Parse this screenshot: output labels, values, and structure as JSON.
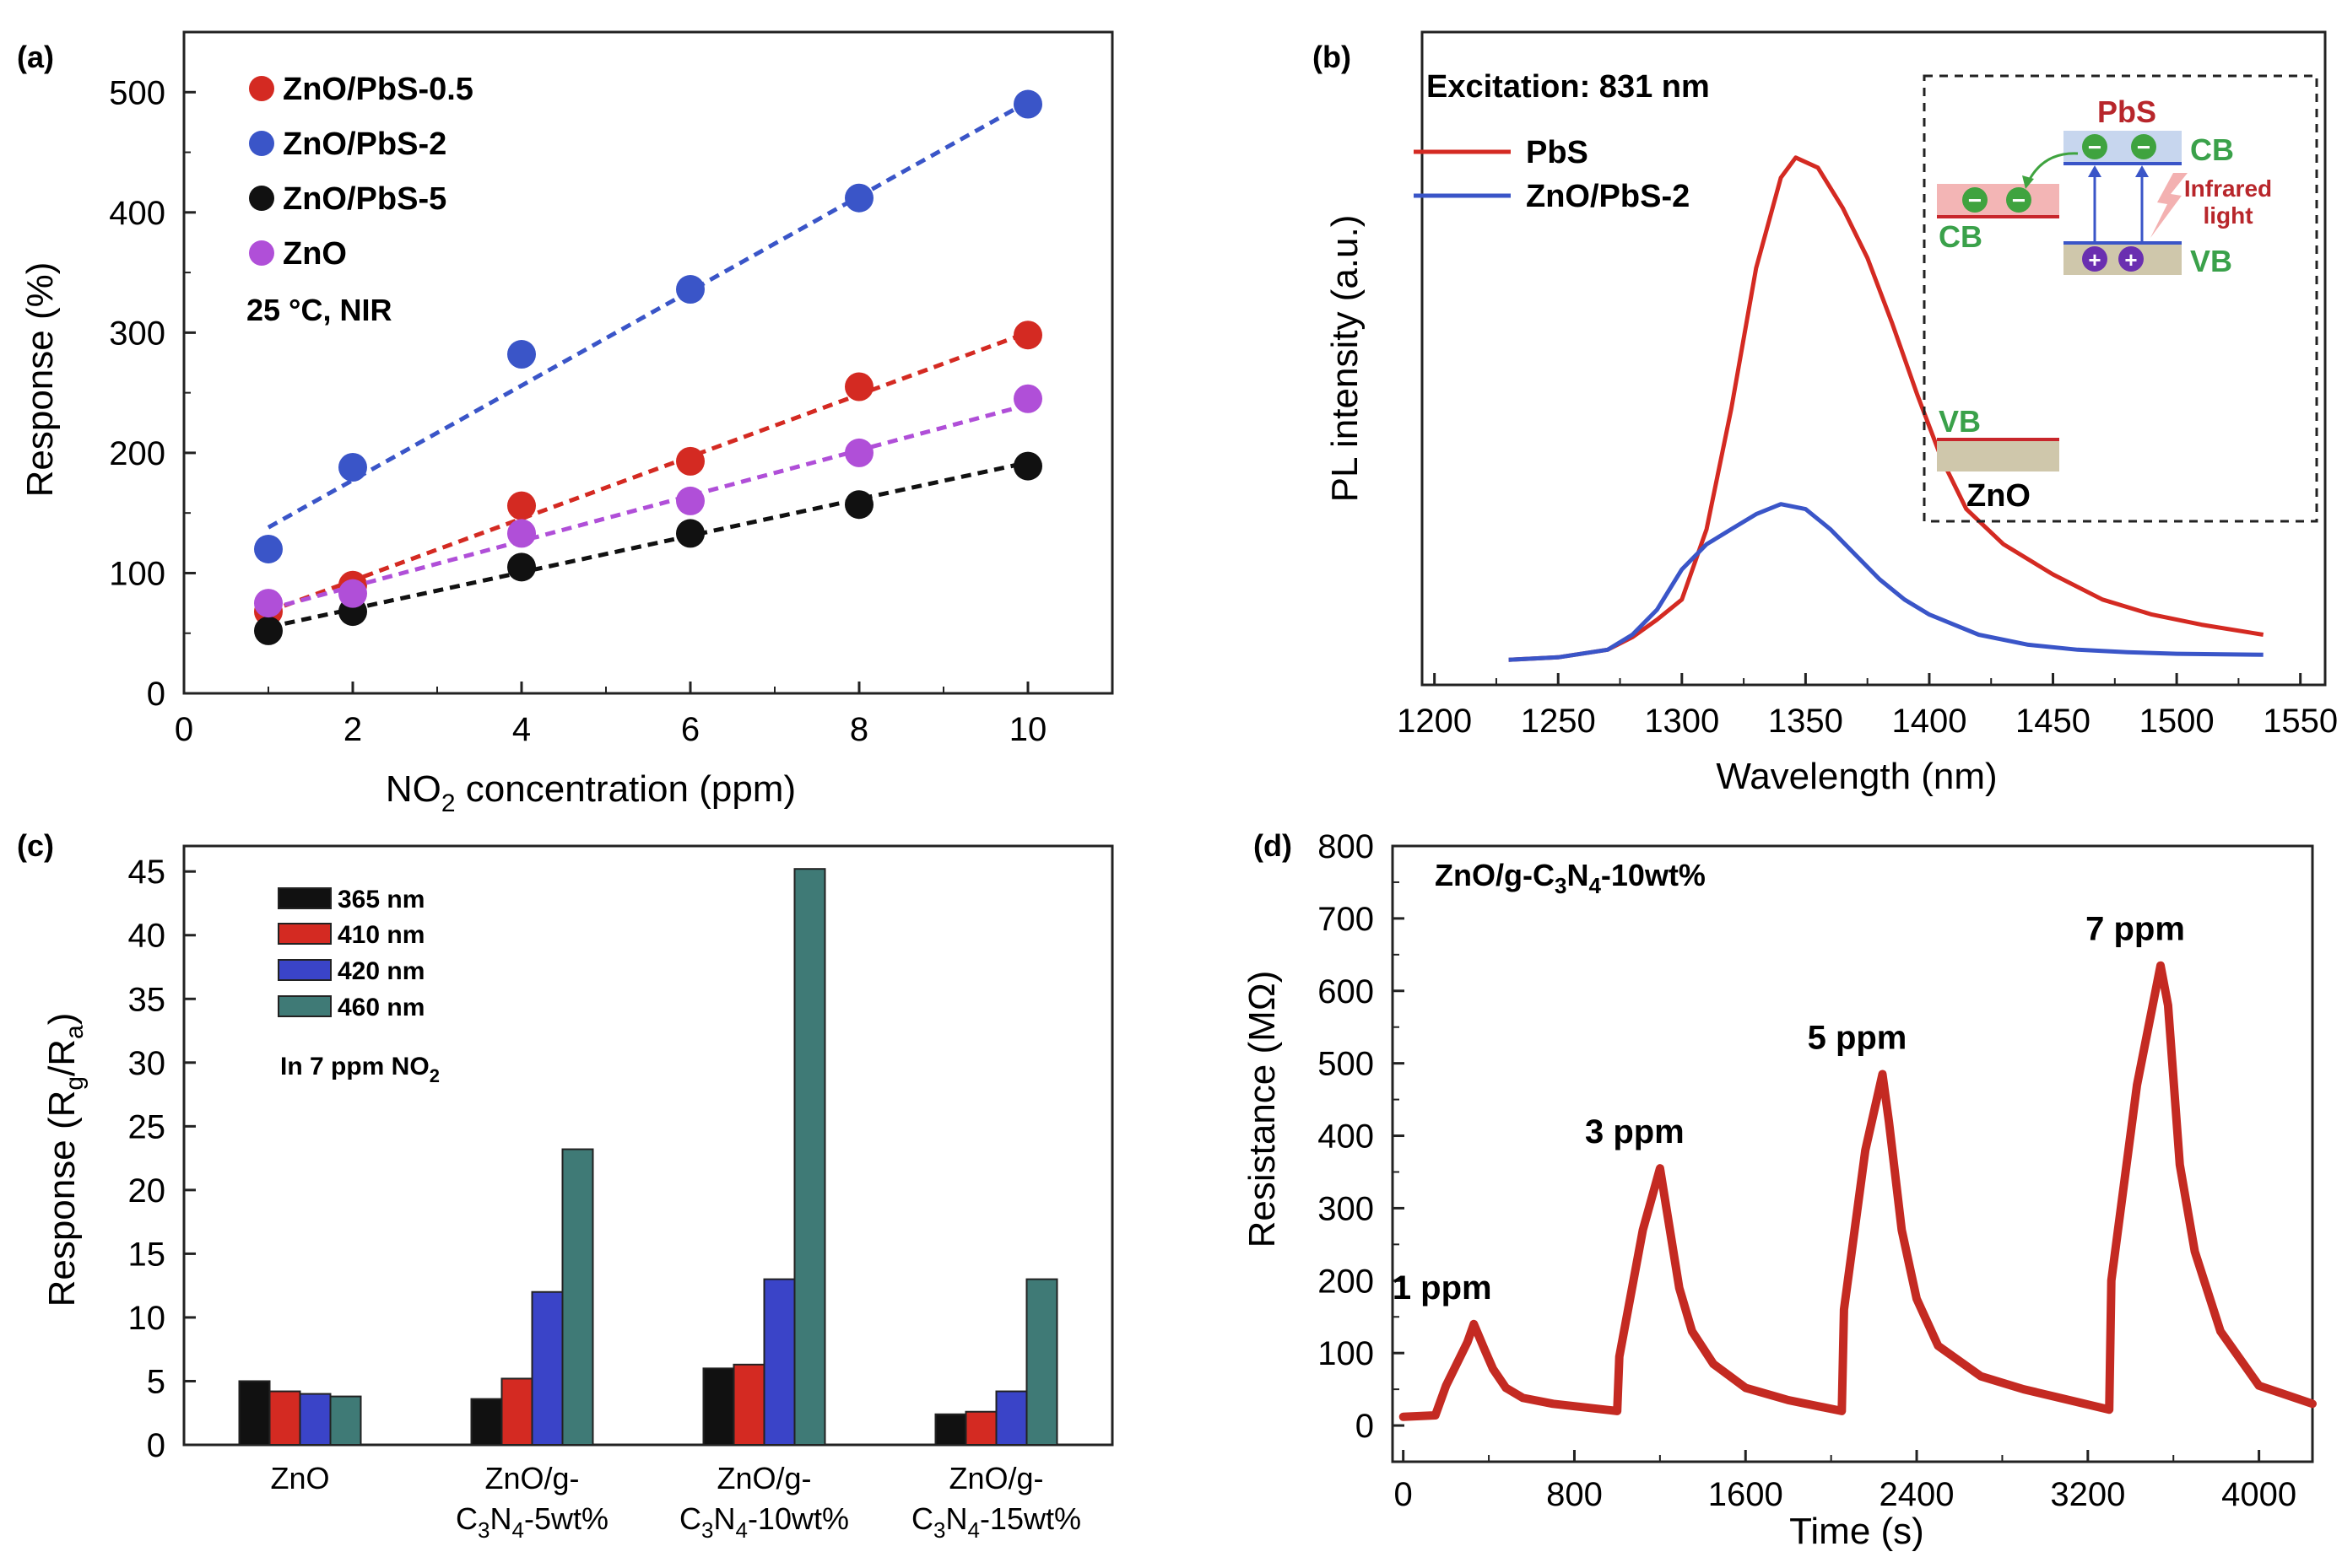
{
  "chart_data": [
    {
      "panel": "(a)",
      "type": "scatter",
      "xlabel_main": "NO",
      "xlabel_sub": "2",
      "xlabel_tail": " concentration (ppm)",
      "ylabel": "Response (%)",
      "xlim": [
        0,
        11
      ],
      "ylim": [
        0,
        550
      ],
      "xticks": [
        0,
        2,
        4,
        6,
        8,
        10
      ],
      "yticks": [
        0,
        100,
        200,
        300,
        400,
        500
      ],
      "condition_label": "25 °C, NIR",
      "series": [
        {
          "name": "ZnO/PbS-0.5",
          "color": "#d42a22",
          "x": [
            1,
            2,
            4,
            6,
            8,
            10
          ],
          "y": [
            68,
            90,
            156,
            193,
            255,
            298
          ],
          "fit": [
            [
              1,
              68
            ],
            [
              10,
              300
            ]
          ]
        },
        {
          "name": "ZnO/PbS-2",
          "color": "#3a55c8",
          "x": [
            1,
            2,
            4,
            6,
            8,
            10
          ],
          "y": [
            120,
            188,
            282,
            336,
            412,
            490
          ],
          "fit": [
            [
              1,
              138
            ],
            [
              10,
              492
            ]
          ]
        },
        {
          "name": "ZnO/PbS-5",
          "color": "#111111",
          "x": [
            1,
            2,
            4,
            6,
            8,
            10
          ],
          "y": [
            52,
            68,
            105,
            133,
            157,
            189
          ],
          "fit": [
            [
              1,
              55
            ],
            [
              10,
              192
            ]
          ]
        },
        {
          "name": "ZnO",
          "color": "#b04fd8",
          "x": [
            1,
            2,
            4,
            6,
            8,
            10
          ],
          "y": [
            75,
            83,
            133,
            160,
            200,
            245
          ],
          "fit": [
            [
              1,
              70
            ],
            [
              10,
              240
            ]
          ]
        }
      ]
    },
    {
      "panel": "(b)",
      "type": "line",
      "xlabel": "Wavelength (nm)",
      "ylabel": "PL intensity (a.u.)",
      "xlim": [
        1195,
        1560
      ],
      "ylim": [
        -0.05,
        1.25
      ],
      "xticks": [
        1200,
        1250,
        1300,
        1350,
        1400,
        1450,
        1500,
        1550
      ],
      "annotation": "Excitation: 831 nm",
      "series": [
        {
          "name": "PbS",
          "color": "#d42a22",
          "x": [
            1230,
            1250,
            1270,
            1280,
            1290,
            1300,
            1310,
            1320,
            1330,
            1340,
            1346,
            1355,
            1365,
            1375,
            1385,
            1395,
            1405,
            1415,
            1430,
            1450,
            1470,
            1490,
            1510,
            1535
          ],
          "y": [
            0.0,
            0.005,
            0.02,
            0.045,
            0.08,
            0.12,
            0.26,
            0.5,
            0.78,
            0.96,
            1.0,
            0.98,
            0.9,
            0.8,
            0.67,
            0.53,
            0.4,
            0.3,
            0.23,
            0.17,
            0.12,
            0.09,
            0.07,
            0.05
          ]
        },
        {
          "name": "ZnO/PbS-2",
          "color": "#3a55c8",
          "x": [
            1230,
            1250,
            1270,
            1280,
            1290,
            1300,
            1310,
            1320,
            1330,
            1340,
            1350,
            1360,
            1370,
            1380,
            1390,
            1400,
            1410,
            1420,
            1440,
            1460,
            1480,
            1500,
            1535
          ],
          "y": [
            0.0,
            0.005,
            0.02,
            0.05,
            0.1,
            0.18,
            0.23,
            0.26,
            0.29,
            0.31,
            0.3,
            0.26,
            0.21,
            0.16,
            0.12,
            0.09,
            0.07,
            0.05,
            0.03,
            0.02,
            0.015,
            0.012,
            0.01
          ]
        }
      ],
      "inset": {
        "top_label": "PbS",
        "cb_label": "CB",
        "vb_label": "VB",
        "zno_cb_label": "CB",
        "zno_vb_label": "VB",
        "light_label_line1": "Infrared",
        "light_label_line2": "light",
        "bottom_label": "ZnO"
      }
    },
    {
      "panel": "(c)",
      "type": "bar",
      "ylabel_main": "Response (R",
      "ylabel_sub1": "g",
      "ylabel_mid": "/R",
      "ylabel_sub2": "a",
      "ylabel_tail": ")",
      "ylim": [
        0,
        47
      ],
      "yticks": [
        0,
        5,
        10,
        15,
        20,
        25,
        30,
        35,
        40,
        45
      ],
      "legend_note_main": "In 7 ppm NO",
      "legend_note_sub": "2",
      "categories": [
        {
          "line1": "ZnO",
          "line2a": "",
          "line2b": "",
          "line2c": "",
          "line2d": ""
        },
        {
          "line1": "ZnO/g-",
          "line2a": "C",
          "line2b": "3",
          "line2c": "N",
          "line2d": "4",
          "line2e": "-5wt%"
        },
        {
          "line1": "ZnO/g-",
          "line2a": "C",
          "line2b": "3",
          "line2c": "N",
          "line2d": "4",
          "line2e": "-10wt%"
        },
        {
          "line1": "ZnO/g-",
          "line2a": "C",
          "line2b": "3",
          "line2c": "N",
          "line2d": "4",
          "line2e": "-15wt%"
        }
      ],
      "series": [
        {
          "name": "365 nm",
          "color": "#111111",
          "values": [
            5.0,
            3.6,
            6.0,
            2.4
          ]
        },
        {
          "name": "410 nm",
          "color": "#d42a22",
          "values": [
            4.2,
            5.2,
            6.3,
            2.6
          ]
        },
        {
          "name": "420 nm",
          "color": "#3a44c8",
          "values": [
            4.0,
            12.0,
            13.0,
            4.2
          ]
        },
        {
          "name": "460 nm",
          "color": "#3f7a76",
          "values": [
            3.8,
            23.2,
            45.2,
            13.0
          ]
        }
      ]
    },
    {
      "panel": "(d)",
      "type": "line",
      "xlabel": "Time (s)",
      "ylabel": "Resistance (MΩ)",
      "xlim": [
        -50,
        4250
      ],
      "ylim": [
        -50,
        800
      ],
      "xticks": [
        0,
        800,
        1600,
        2400,
        3200,
        4000
      ],
      "yticks": [
        0,
        100,
        200,
        300,
        400,
        500,
        600,
        700,
        800
      ],
      "title_main": "ZnO/g-C",
      "title_sub1": "3",
      "title_mid": "N",
      "title_sub2": "4",
      "title_tail": "-10wt%",
      "color": "#c42a22",
      "x": [
        0,
        150,
        200,
        300,
        330,
        380,
        420,
        480,
        560,
        700,
        1000,
        1010,
        1120,
        1200,
        1230,
        1290,
        1350,
        1450,
        1600,
        1800,
        2050,
        2060,
        2160,
        2240,
        2270,
        2330,
        2400,
        2500,
        2700,
        2900,
        3300,
        3310,
        3430,
        3540,
        3575,
        3630,
        3700,
        3820,
        4000,
        4250
      ],
      "y": [
        12,
        14,
        55,
        115,
        140,
        105,
        78,
        52,
        38,
        30,
        20,
        95,
        270,
        355,
        300,
        190,
        130,
        85,
        52,
        35,
        20,
        160,
        380,
        485,
        420,
        270,
        175,
        110,
        68,
        50,
        22,
        200,
        470,
        635,
        580,
        360,
        240,
        130,
        55,
        30
      ],
      "peak_labels": [
        {
          "label": "1 ppm",
          "x": 300,
          "y": 140
        },
        {
          "label": "3 ppm",
          "x": 1200,
          "y": 355
        },
        {
          "label": "5 ppm",
          "x": 2240,
          "y": 485
        },
        {
          "label": "7 ppm",
          "x": 3540,
          "y": 635
        }
      ]
    }
  ]
}
